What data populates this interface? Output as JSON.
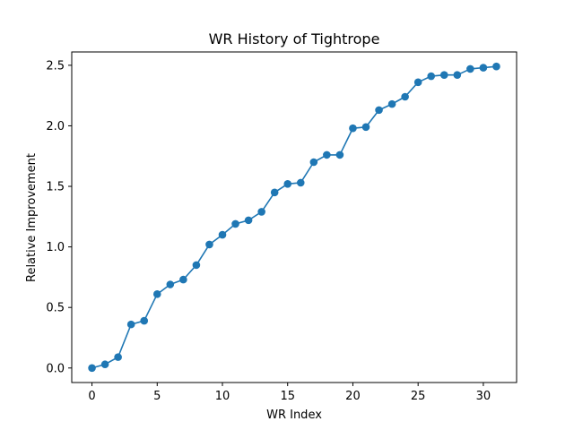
{
  "chart_data": {
    "type": "line",
    "title": "WR History of Tightrope",
    "xlabel": "WR Index",
    "ylabel": "Relative Improvement",
    "xlim": [
      -1.55,
      32.55
    ],
    "ylim": [
      -0.12,
      2.61
    ],
    "xticks": [
      0,
      5,
      10,
      15,
      20,
      25,
      30
    ],
    "yticks": [
      0.0,
      0.5,
      1.0,
      1.5,
      2.0,
      2.5
    ],
    "xtick_labels": [
      "0",
      "5",
      "10",
      "15",
      "20",
      "25",
      "30"
    ],
    "ytick_labels": [
      "0.0",
      "0.5",
      "1.0",
      "1.5",
      "2.0",
      "2.5"
    ],
    "grid": false,
    "series": [
      {
        "color": "#1f77b4",
        "marker": "circle",
        "x": [
          0,
          1,
          2,
          3,
          4,
          5,
          6,
          7,
          8,
          9,
          10,
          11,
          12,
          13,
          14,
          15,
          16,
          17,
          18,
          19,
          20,
          21,
          22,
          23,
          24,
          25,
          26,
          27,
          28,
          29,
          30,
          31
        ],
        "y": [
          0.0,
          0.03,
          0.09,
          0.36,
          0.39,
          0.61,
          0.69,
          0.73,
          0.85,
          1.02,
          1.1,
          1.19,
          1.22,
          1.29,
          1.45,
          1.52,
          1.53,
          1.7,
          1.76,
          1.76,
          1.98,
          1.99,
          2.13,
          2.18,
          2.24,
          2.36,
          2.41,
          2.42,
          2.42,
          2.47,
          2.48,
          2.49
        ]
      }
    ]
  }
}
